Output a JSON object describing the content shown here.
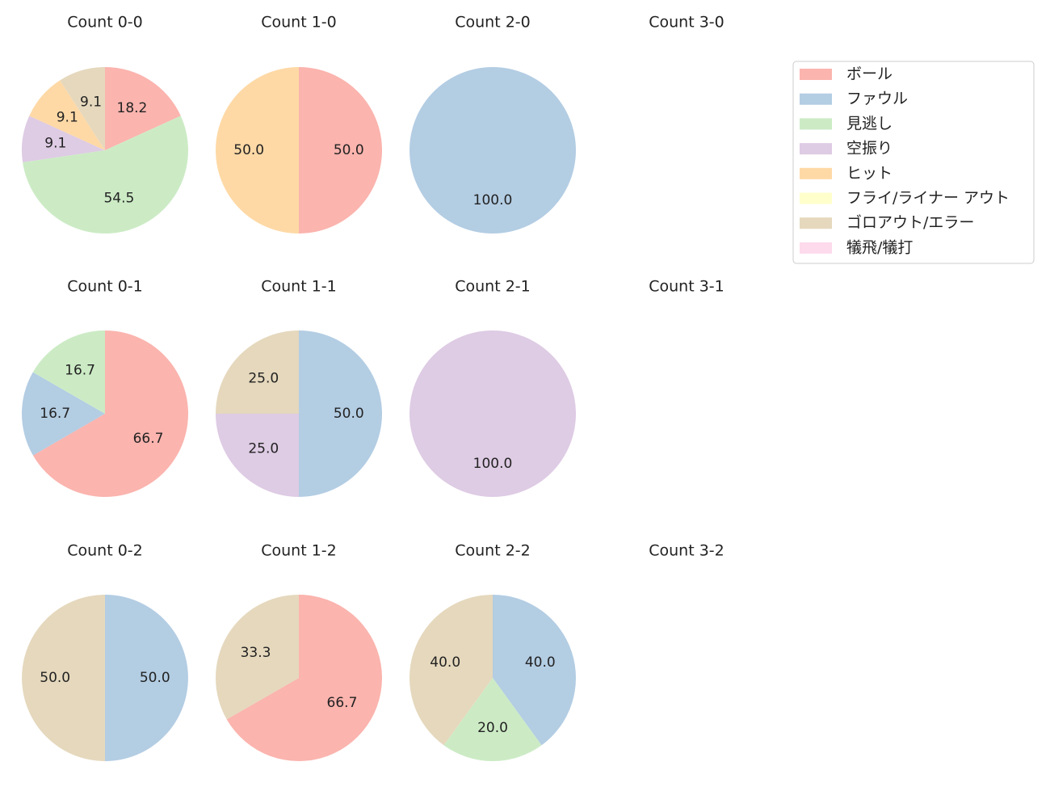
{
  "chart_data": [
    {
      "type": "pie",
      "title": "Count 0-0",
      "categories": [
        "ボール",
        "見逃し",
        "空振り",
        "ヒット",
        "ゴロアウト/エラー"
      ],
      "values": [
        18.2,
        54.5,
        9.1,
        9.1,
        9.1
      ],
      "value_labels": [
        "18.2",
        "54.5",
        "9.1",
        "9.1",
        "9.1"
      ],
      "colors": [
        "#fbb4ae",
        "#ccebc5",
        "#decbe4",
        "#fed9a6",
        "#e5d8bd"
      ]
    },
    {
      "type": "pie",
      "title": "Count 1-0",
      "categories": [
        "ボール",
        "ヒット"
      ],
      "values": [
        50,
        50
      ],
      "value_labels": [
        "50.0",
        "50.0"
      ],
      "colors": [
        "#fbb4ae",
        "#fed9a6"
      ]
    },
    {
      "type": "pie",
      "title": "Count 2-0",
      "categories": [
        "ファウル"
      ],
      "values": [
        100
      ],
      "value_labels": [
        "100.0"
      ],
      "colors": [
        "#b3cde3"
      ]
    },
    {
      "type": "pie",
      "title": "Count 3-0",
      "categories": [],
      "values": [],
      "value_labels": [],
      "colors": []
    },
    {
      "type": "pie",
      "title": "Count 0-1",
      "categories": [
        "ボール",
        "ファウル",
        "見逃し"
      ],
      "values": [
        66.7,
        16.7,
        16.7
      ],
      "value_labels": [
        "66.7",
        "16.7",
        "16.7"
      ],
      "colors": [
        "#fbb4ae",
        "#b3cde3",
        "#ccebc5"
      ]
    },
    {
      "type": "pie",
      "title": "Count 1-1",
      "categories": [
        "ファウル",
        "空振り",
        "ゴロアウト/エラー"
      ],
      "values": [
        50,
        25,
        25
      ],
      "value_labels": [
        "50.0",
        "25.0",
        "25.0"
      ],
      "colors": [
        "#b3cde3",
        "#decbe4",
        "#e5d8bd"
      ]
    },
    {
      "type": "pie",
      "title": "Count 2-1",
      "categories": [
        "空振り"
      ],
      "values": [
        100
      ],
      "value_labels": [
        "100.0"
      ],
      "colors": [
        "#decbe4"
      ]
    },
    {
      "type": "pie",
      "title": "Count 3-1",
      "categories": [],
      "values": [],
      "value_labels": [],
      "colors": []
    },
    {
      "type": "pie",
      "title": "Count 0-2",
      "categories": [
        "ファウル",
        "ゴロアウト/エラー"
      ],
      "values": [
        50,
        50
      ],
      "value_labels": [
        "50.0",
        "50.0"
      ],
      "colors": [
        "#b3cde3",
        "#e5d8bd"
      ]
    },
    {
      "type": "pie",
      "title": "Count 1-2",
      "categories": [
        "ボール",
        "ゴロアウト/エラー"
      ],
      "values": [
        66.7,
        33.3
      ],
      "value_labels": [
        "66.7",
        "33.3"
      ],
      "colors": [
        "#fbb4ae",
        "#e5d8bd"
      ]
    },
    {
      "type": "pie",
      "title": "Count 2-2",
      "categories": [
        "ファウル",
        "見逃し",
        "ゴロアウト/エラー"
      ],
      "values": [
        40,
        20,
        40
      ],
      "value_labels": [
        "40.0",
        "20.0",
        "40.0"
      ],
      "colors": [
        "#b3cde3",
        "#ccebc5",
        "#e5d8bd"
      ]
    },
    {
      "type": "pie",
      "title": "Count 3-2",
      "categories": [],
      "values": [],
      "value_labels": [],
      "colors": []
    }
  ],
  "legend": {
    "labels": [
      "ボール",
      "ファウル",
      "見逃し",
      "空振り",
      "ヒット",
      "フライ/ライナー アウト",
      "ゴロアウト/エラー",
      "犠飛/犠打"
    ],
    "colors": [
      "#fbb4ae",
      "#b3cde3",
      "#ccebc5",
      "#decbe4",
      "#fed9a6",
      "#ffffcc",
      "#e5d8bd",
      "#fddaec"
    ]
  }
}
